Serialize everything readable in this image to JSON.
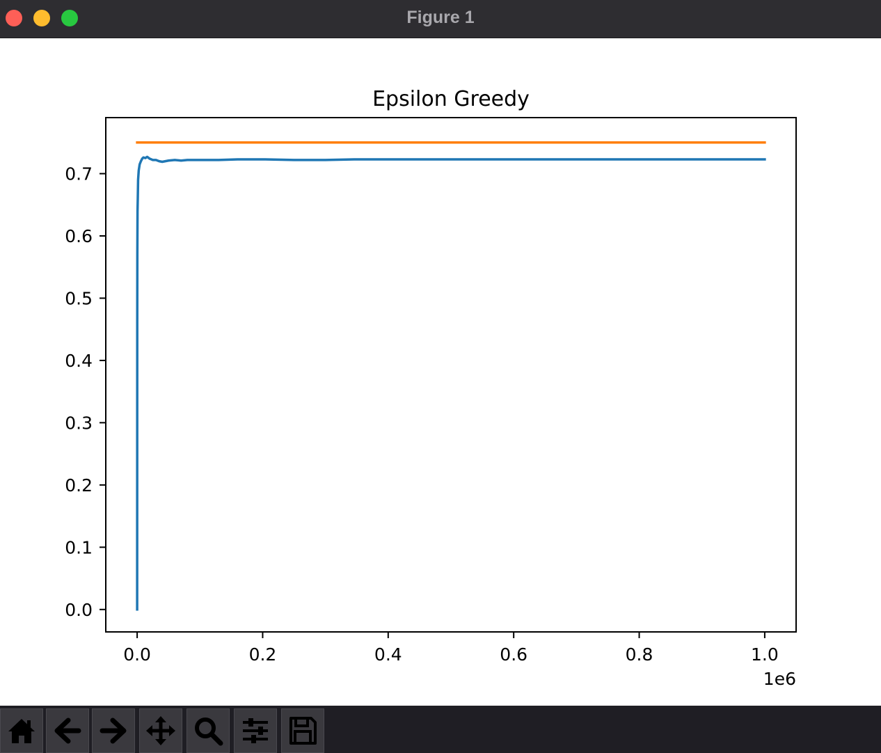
{
  "window": {
    "title": "Figure 1"
  },
  "toolbar": {
    "buttons": [
      {
        "name": "home-button",
        "icon": "home-icon"
      },
      {
        "name": "back-button",
        "icon": "arrow-left-icon"
      },
      {
        "name": "forward-button",
        "icon": "arrow-right-icon"
      },
      {
        "name": "pan-button",
        "icon": "move-icon"
      },
      {
        "name": "zoom-button",
        "icon": "magnifier-icon"
      },
      {
        "name": "configure-subplots-button",
        "icon": "sliders-icon"
      },
      {
        "name": "save-button",
        "icon": "floppy-disk-icon"
      }
    ]
  },
  "chart_data": {
    "type": "line",
    "title": "Epsilon Greedy",
    "xlabel": "",
    "ylabel": "",
    "x_offset_label": "1e6",
    "xlim": [
      -50000,
      1050000
    ],
    "ylim": [
      -0.036,
      0.79
    ],
    "xticks": [
      0,
      200000,
      400000,
      600000,
      800000,
      1000000
    ],
    "xtick_labels": [
      "0.0",
      "0.2",
      "0.4",
      "0.6",
      "0.8",
      "1.0"
    ],
    "yticks": [
      0.0,
      0.1,
      0.2,
      0.3,
      0.4,
      0.5,
      0.6,
      0.7
    ],
    "ytick_labels": [
      "0.0",
      "0.1",
      "0.2",
      "0.3",
      "0.4",
      "0.5",
      "0.6",
      "0.7"
    ],
    "grid": false,
    "series": [
      {
        "color": "#1f77b4",
        "x": [
          0,
          150,
          300,
          600,
          1000,
          1500,
          2500,
          4000,
          6000,
          8000,
          10000,
          13000,
          16000,
          20000,
          25000,
          30000,
          35000,
          40000,
          45000,
          50000,
          60000,
          70000,
          80000,
          100000,
          130000,
          160000,
          200000,
          250000,
          300000,
          350000,
          400000,
          500000,
          600000,
          700000,
          800000,
          900000,
          1000000
        ],
        "y": [
          0.0,
          0.46,
          0.57,
          0.64,
          0.66,
          0.69,
          0.705,
          0.715,
          0.72,
          0.724,
          0.726,
          0.725,
          0.727,
          0.724,
          0.722,
          0.722,
          0.72,
          0.719,
          0.72,
          0.721,
          0.722,
          0.721,
          0.722,
          0.722,
          0.722,
          0.723,
          0.723,
          0.722,
          0.722,
          0.723,
          0.723,
          0.723,
          0.723,
          0.723,
          0.723,
          0.723,
          0.723
        ]
      },
      {
        "color": "#ff7f0e",
        "x": [
          0,
          1000000
        ],
        "y": [
          0.75,
          0.75
        ]
      }
    ]
  }
}
